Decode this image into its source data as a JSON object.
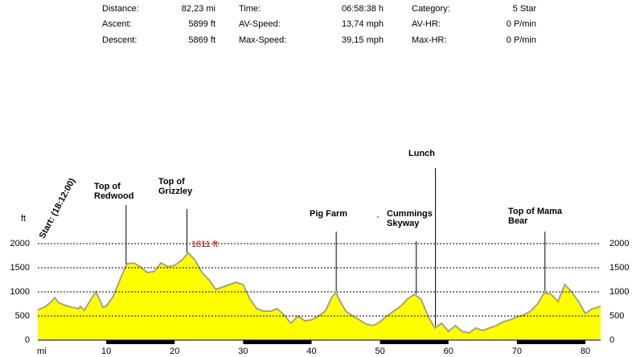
{
  "stats": [
    {
      "label": "Distance:",
      "value": "82,23 mi"
    },
    {
      "label": "Ascent:",
      "value": "5899 ft"
    },
    {
      "label": "Descent:",
      "value": "5869 ft"
    },
    {
      "label": "Time:",
      "value": "06:58:38 h"
    },
    {
      "label": "AV-Speed:",
      "value": "13,74 mph"
    },
    {
      "label": "Max-Speed:",
      "value": "39,15 mph"
    },
    {
      "label": "Category:",
      "value": "5 Star"
    },
    {
      "label": "AV-HR:",
      "value": "0 P/min"
    },
    {
      "label": "Max-HR:",
      "value": "0 P/min"
    }
  ],
  "chart_data": {
    "type": "area",
    "x_label": "mi",
    "y_label": "ft",
    "start_label": "Start: (18:12:00)",
    "peak_label": "1811 ft",
    "color": "#ffff00",
    "line_color": "#a0a0a0",
    "grid": true,
    "xlim": [
      0,
      82.23
    ],
    "xticks": [
      10,
      20,
      30,
      40,
      50,
      60,
      70,
      80
    ],
    "ylim": [
      0,
      2000
    ],
    "yticks": [
      0,
      500,
      1000,
      1500,
      2000
    ],
    "y2lim": [
      0,
      2000
    ],
    "y2ticks": [
      0,
      500,
      1000,
      1500,
      2000
    ],
    "x": [
      0,
      1,
      2,
      2.5,
      3,
      4,
      5,
      6,
      6.2,
      6.8,
      8,
      8.5,
      9,
      9.5,
      10,
      11,
      12,
      13,
      14,
      15,
      16,
      17,
      18,
      19,
      20,
      21,
      22,
      23,
      24,
      25,
      26,
      27,
      28,
      29,
      30,
      31,
      32,
      33,
      34,
      35,
      36,
      37,
      38,
      39,
      40,
      41,
      42,
      43,
      43.6,
      44,
      45,
      46,
      47,
      48,
      49,
      50,
      51,
      52,
      53,
      54,
      55,
      56,
      57,
      58,
      58.5,
      59,
      60,
      61,
      62,
      63,
      64,
      65,
      66,
      67,
      68,
      69,
      70,
      71,
      72,
      73,
      74,
      75,
      76,
      77,
      78,
      79,
      80,
      81,
      82.23
    ],
    "values": [
      630,
      680,
      800,
      880,
      780,
      720,
      680,
      650,
      700,
      620,
      900,
      1000,
      850,
      680,
      700,
      900,
      1250,
      1580,
      1600,
      1520,
      1400,
      1420,
      1600,
      1520,
      1550,
      1650,
      1811,
      1650,
      1400,
      1250,
      1050,
      1100,
      1150,
      1200,
      1150,
      850,
      650,
      600,
      600,
      650,
      520,
      350,
      500,
      400,
      420,
      500,
      600,
      900,
      980,
      850,
      600,
      500,
      420,
      330,
      300,
      380,
      500,
      600,
      700,
      850,
      950,
      850,
      500,
      250,
      300,
      350,
      180,
      300,
      180,
      150,
      250,
      200,
      250,
      300,
      380,
      420,
      480,
      520,
      600,
      750,
      980,
      950,
      800,
      1150,
      1000,
      800,
      550,
      650,
      700
    ],
    "annotations": [
      {
        "x": 12.9,
        "lines": [
          "Top of",
          "Redwood"
        ]
      },
      {
        "x": 21.8,
        "lines": [
          "Top of",
          "Grizzley"
        ]
      },
      {
        "x": 43.6,
        "lines": [
          "Pig Farm"
        ]
      },
      {
        "x": 55.3,
        "lines": [
          "Cummings",
          "Skyway"
        ]
      },
      {
        "x": 58.1,
        "lines": [
          "Lunch"
        ]
      },
      {
        "x": 74.1,
        "lines": [
          "Top of Mama",
          "Bear"
        ]
      }
    ]
  }
}
